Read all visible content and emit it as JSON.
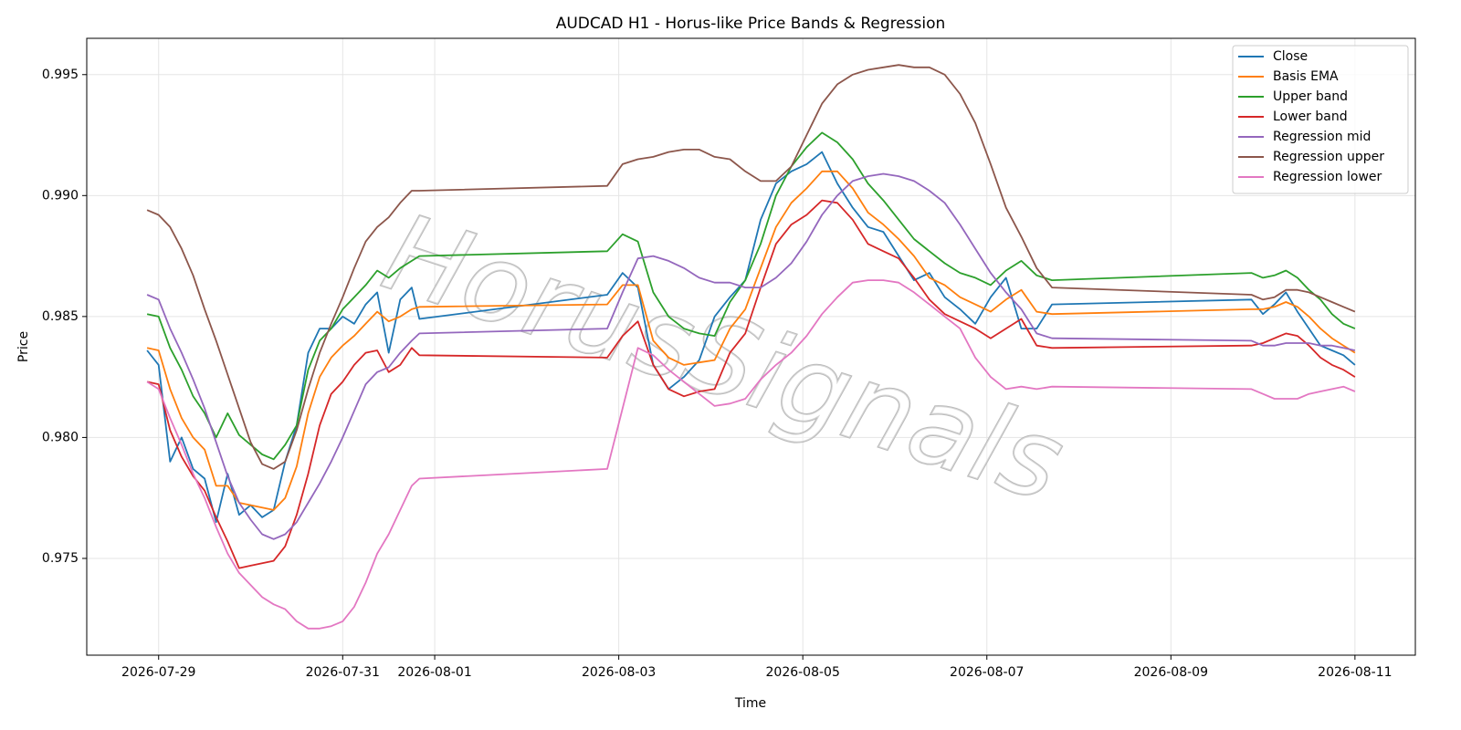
{
  "chart_data": {
    "type": "line",
    "title": "AUDCAD H1 - Horus-like Price Bands & Regression",
    "x_label": "Time",
    "y_label": "Price",
    "watermark": "HorusSignals",
    "x": [
      "2026-07-28 21:00",
      "2026-07-29 00:00",
      "2026-07-29 03:00",
      "2026-07-29 06:00",
      "2026-07-29 09:00",
      "2026-07-29 12:00",
      "2026-07-29 15:00",
      "2026-07-29 18:00",
      "2026-07-29 21:00",
      "2026-07-30 00:00",
      "2026-07-30 03:00",
      "2026-07-30 06:00",
      "2026-07-30 09:00",
      "2026-07-30 12:00",
      "2026-07-30 15:00",
      "2026-07-30 18:00",
      "2026-07-30 21:00",
      "2026-07-31 00:00",
      "2026-07-31 03:00",
      "2026-07-31 06:00",
      "2026-07-31 09:00",
      "2026-07-31 12:00",
      "2026-07-31 15:00",
      "2026-07-31 18:00",
      "2026-07-31 20:00",
      "2026-08-02 21:00",
      "2026-08-03 01:00",
      "2026-08-03 05:00",
      "2026-08-03 09:00",
      "2026-08-03 13:00",
      "2026-08-03 17:00",
      "2026-08-03 21:00",
      "2026-08-04 01:00",
      "2026-08-04 05:00",
      "2026-08-04 09:00",
      "2026-08-04 13:00",
      "2026-08-04 17:00",
      "2026-08-04 21:00",
      "2026-08-05 01:00",
      "2026-08-05 05:00",
      "2026-08-05 09:00",
      "2026-08-05 13:00",
      "2026-08-05 17:00",
      "2026-08-05 21:00",
      "2026-08-06 01:00",
      "2026-08-06 05:00",
      "2026-08-06 09:00",
      "2026-08-06 13:00",
      "2026-08-06 17:00",
      "2026-08-06 21:00",
      "2026-08-07 01:00",
      "2026-08-07 05:00",
      "2026-08-07 09:00",
      "2026-08-07 13:00",
      "2026-08-07 17:00",
      "2026-08-09 21:00",
      "2026-08-10 00:00",
      "2026-08-10 03:00",
      "2026-08-10 06:00",
      "2026-08-10 09:00",
      "2026-08-10 12:00",
      "2026-08-10 15:00",
      "2026-08-10 18:00",
      "2026-08-10 21:00",
      "2026-08-11 00:00"
    ],
    "series": [
      {
        "name": "Close",
        "color": "#1f77b4",
        "values": [
          0.9836,
          0.983,
          0.979,
          0.98,
          0.9787,
          0.9783,
          0.9765,
          0.9785,
          0.9768,
          0.9772,
          0.9767,
          0.977,
          0.979,
          0.9805,
          0.9835,
          0.9845,
          0.9845,
          0.985,
          0.9847,
          0.9855,
          0.986,
          0.9835,
          0.9857,
          0.9862,
          0.9849,
          0.9859,
          0.9868,
          0.9862,
          0.983,
          0.982,
          0.9825,
          0.9832,
          0.985,
          0.9858,
          0.9865,
          0.989,
          0.9905,
          0.991,
          0.9913,
          0.9918,
          0.9905,
          0.9895,
          0.9887,
          0.9885,
          0.9875,
          0.9865,
          0.9868,
          0.9858,
          0.9853,
          0.9847,
          0.9858,
          0.9866,
          0.9845,
          0.9845,
          0.9855,
          0.9857,
          0.9851,
          0.9855,
          0.986,
          0.9852,
          0.9845,
          0.9838,
          0.9836,
          0.9834,
          0.983
        ]
      },
      {
        "name": "Basis EMA",
        "color": "#ff7f0e",
        "values": [
          0.9837,
          0.9836,
          0.982,
          0.9808,
          0.98,
          0.9795,
          0.978,
          0.978,
          0.9773,
          0.9772,
          0.9771,
          0.977,
          0.9775,
          0.9788,
          0.981,
          0.9825,
          0.9833,
          0.9838,
          0.9842,
          0.9847,
          0.9852,
          0.9848,
          0.985,
          0.9853,
          0.9854,
          0.9855,
          0.9863,
          0.9863,
          0.984,
          0.9833,
          0.983,
          0.9831,
          0.9832,
          0.9845,
          0.9853,
          0.987,
          0.9887,
          0.9897,
          0.9903,
          0.991,
          0.991,
          0.9903,
          0.9893,
          0.9888,
          0.9882,
          0.9875,
          0.9866,
          0.9863,
          0.9858,
          0.9855,
          0.9852,
          0.9857,
          0.9861,
          0.9852,
          0.9851,
          0.9853,
          0.9853,
          0.9854,
          0.9856,
          0.9854,
          0.985,
          0.9845,
          0.9841,
          0.9838,
          0.9835
        ]
      },
      {
        "name": "Upper band",
        "color": "#2ca02c",
        "values": [
          0.9851,
          0.985,
          0.9837,
          0.9828,
          0.9817,
          0.981,
          0.98,
          0.981,
          0.9801,
          0.9797,
          0.9793,
          0.9791,
          0.9797,
          0.9805,
          0.9828,
          0.984,
          0.9845,
          0.9853,
          0.9858,
          0.9863,
          0.9869,
          0.9866,
          0.987,
          0.9873,
          0.9875,
          0.9877,
          0.9884,
          0.9881,
          0.986,
          0.985,
          0.9845,
          0.9843,
          0.9842,
          0.9856,
          0.9865,
          0.988,
          0.99,
          0.9912,
          0.992,
          0.9926,
          0.9922,
          0.9915,
          0.9905,
          0.9898,
          0.989,
          0.9882,
          0.9877,
          0.9872,
          0.9868,
          0.9866,
          0.9863,
          0.9869,
          0.9873,
          0.9867,
          0.9865,
          0.9868,
          0.9866,
          0.9867,
          0.9869,
          0.9866,
          0.9861,
          0.9857,
          0.9851,
          0.9847,
          0.9845
        ]
      },
      {
        "name": "Lower band",
        "color": "#d62728",
        "values": [
          0.9823,
          0.9822,
          0.9803,
          0.9792,
          0.9784,
          0.9778,
          0.9767,
          0.9757,
          0.9746,
          0.9747,
          0.9748,
          0.9749,
          0.9755,
          0.9768,
          0.9785,
          0.9805,
          0.9818,
          0.9823,
          0.983,
          0.9835,
          0.9836,
          0.9827,
          0.983,
          0.9837,
          0.9834,
          0.9833,
          0.9842,
          0.9848,
          0.983,
          0.982,
          0.9817,
          0.9819,
          0.982,
          0.9835,
          0.9843,
          0.9862,
          0.988,
          0.9888,
          0.9892,
          0.9898,
          0.9897,
          0.989,
          0.988,
          0.9877,
          0.9874,
          0.9866,
          0.9857,
          0.9851,
          0.9848,
          0.9845,
          0.9841,
          0.9845,
          0.9849,
          0.9838,
          0.9837,
          0.9838,
          0.9839,
          0.9841,
          0.9843,
          0.9842,
          0.9838,
          0.9833,
          0.983,
          0.9828,
          0.9825
        ]
      },
      {
        "name": "Regression mid",
        "color": "#9467bd",
        "values": [
          0.9859,
          0.9857,
          0.9845,
          0.9835,
          0.9824,
          0.9812,
          0.9798,
          0.9784,
          0.9773,
          0.9766,
          0.976,
          0.9758,
          0.976,
          0.9765,
          0.9773,
          0.9781,
          0.979,
          0.98,
          0.9811,
          0.9822,
          0.9827,
          0.9829,
          0.9835,
          0.984,
          0.9843,
          0.9845,
          0.986,
          0.9874,
          0.9875,
          0.9873,
          0.987,
          0.9866,
          0.9864,
          0.9864,
          0.9862,
          0.9862,
          0.9866,
          0.9872,
          0.9881,
          0.9892,
          0.99,
          0.9906,
          0.9908,
          0.9909,
          0.9908,
          0.9906,
          0.9902,
          0.9897,
          0.9888,
          0.9878,
          0.9868,
          0.986,
          0.9853,
          0.9843,
          0.9841,
          0.984,
          0.9838,
          0.9838,
          0.9839,
          0.9839,
          0.9839,
          0.9838,
          0.9838,
          0.9837,
          0.9836
        ]
      },
      {
        "name": "Regression upper",
        "color": "#8c564b",
        "values": [
          0.9894,
          0.9892,
          0.9887,
          0.9878,
          0.9867,
          0.9853,
          0.984,
          0.9826,
          0.9812,
          0.9798,
          0.9789,
          0.9787,
          0.979,
          0.9803,
          0.982,
          0.9835,
          0.9847,
          0.9858,
          0.987,
          0.9881,
          0.9887,
          0.9891,
          0.9897,
          0.9902,
          0.9902,
          0.9904,
          0.9913,
          0.9915,
          0.9916,
          0.9918,
          0.9919,
          0.9919,
          0.9916,
          0.9915,
          0.991,
          0.9906,
          0.9906,
          0.9912,
          0.9925,
          0.9938,
          0.9946,
          0.995,
          0.9952,
          0.9953,
          0.9954,
          0.9953,
          0.9953,
          0.995,
          0.9942,
          0.993,
          0.9913,
          0.9895,
          0.9883,
          0.987,
          0.9862,
          0.9859,
          0.9857,
          0.9858,
          0.9861,
          0.9861,
          0.986,
          0.9858,
          0.9856,
          0.9854,
          0.9852
        ]
      },
      {
        "name": "Regression lower",
        "color": "#e377c2",
        "values": [
          0.9823,
          0.982,
          0.9808,
          0.9797,
          0.9785,
          0.9775,
          0.9763,
          0.9752,
          0.9744,
          0.9739,
          0.9734,
          0.9731,
          0.9729,
          0.9724,
          0.9721,
          0.9721,
          0.9722,
          0.9724,
          0.973,
          0.974,
          0.9752,
          0.976,
          0.977,
          0.978,
          0.9783,
          0.9787,
          0.9812,
          0.9837,
          0.9834,
          0.9828,
          0.9823,
          0.9818,
          0.9813,
          0.9814,
          0.9816,
          0.9824,
          0.983,
          0.9835,
          0.9842,
          0.9851,
          0.9858,
          0.9864,
          0.9865,
          0.9865,
          0.9864,
          0.986,
          0.9855,
          0.985,
          0.9845,
          0.9833,
          0.9825,
          0.982,
          0.9821,
          0.982,
          0.9821,
          0.982,
          0.9818,
          0.9816,
          0.9816,
          0.9816,
          0.9818,
          0.9819,
          0.982,
          0.9821,
          0.9819
        ]
      }
    ],
    "xlim": [
      "2026-07-28 05:15",
      "2026-08-11 15:45"
    ],
    "xticks": [
      "2026-07-29",
      "2026-07-31",
      "2026-08-01",
      "2026-08-03",
      "2026-08-05",
      "2026-08-07",
      "2026-08-09",
      "2026-08-11"
    ],
    "ylim": [
      0.971,
      0.9965
    ],
    "yticks": [
      0.975,
      {
        "value": 0.98,
        "label": "0.980"
      },
      0.985,
      {
        "value": 0.99,
        "label": "0.990"
      },
      0.995
    ],
    "grid": true,
    "legend": "upper right"
  }
}
